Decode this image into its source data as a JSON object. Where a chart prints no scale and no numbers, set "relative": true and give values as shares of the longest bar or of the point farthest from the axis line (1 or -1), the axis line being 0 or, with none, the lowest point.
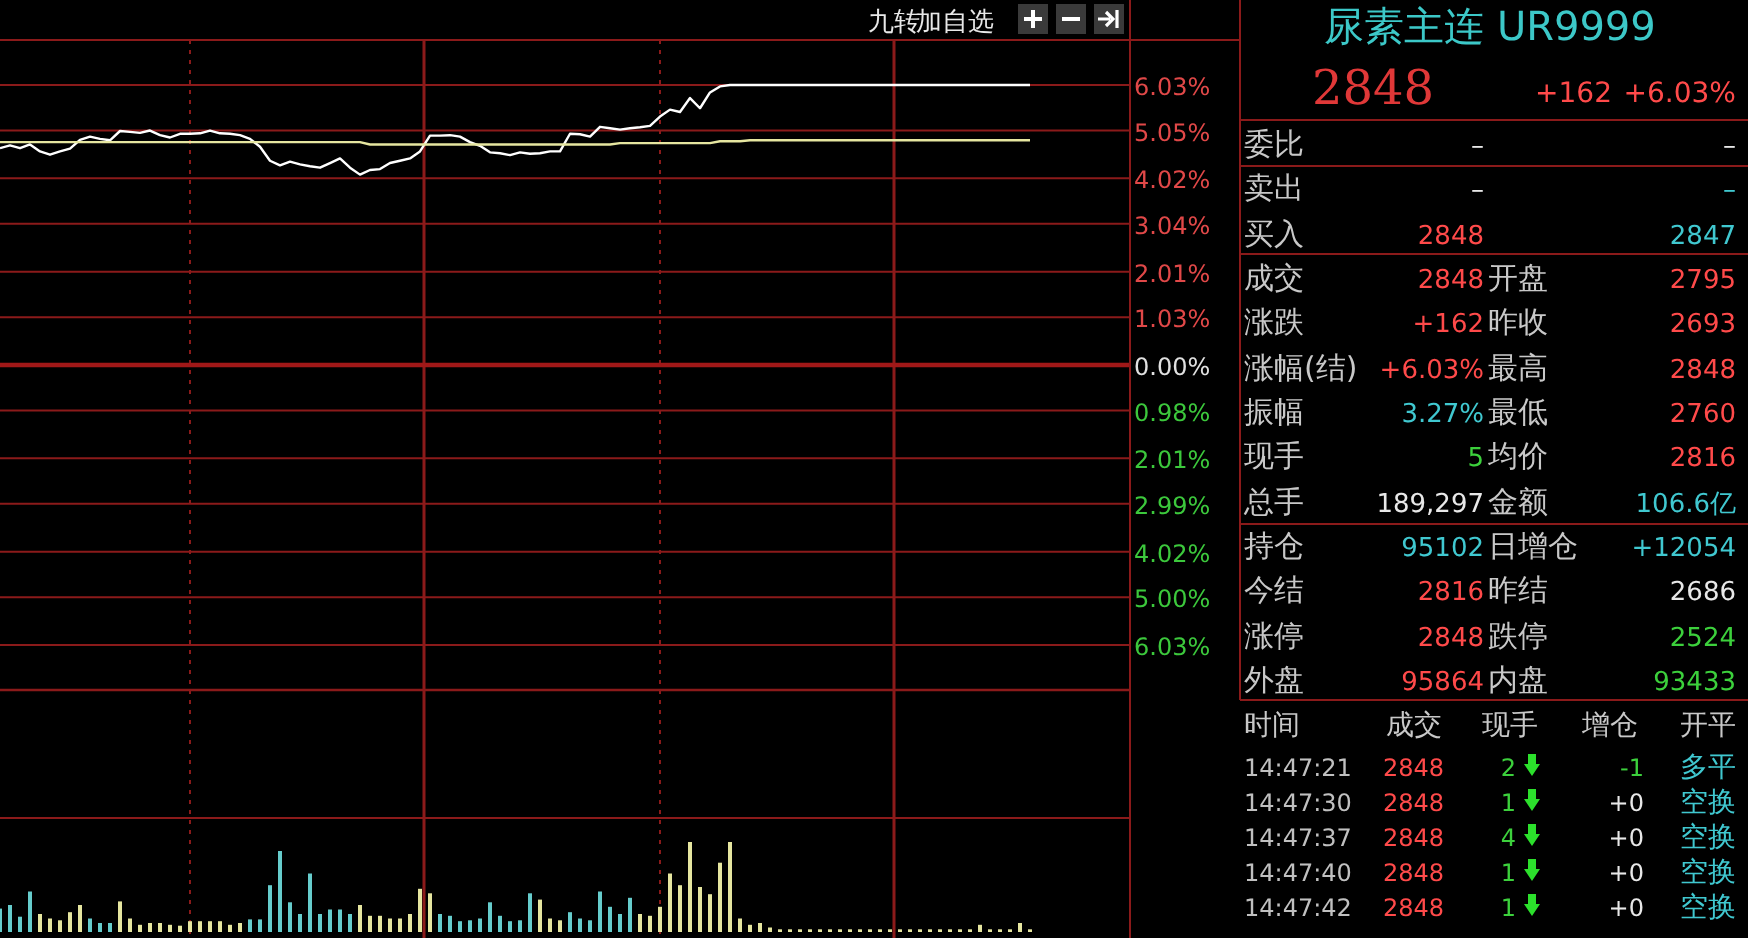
{
  "chart_data": [
    {
      "type": "line",
      "categories": [
        null,
        null,
        null,
        null,
        null,
        null,
        null,
        null,
        null,
        null,
        null,
        null,
        null,
        null,
        null,
        null,
        null,
        null,
        null,
        null,
        null,
        null,
        null,
        null,
        null,
        null,
        null,
        null,
        null,
        null,
        null,
        null,
        null,
        null,
        null,
        null,
        null,
        null,
        null,
        null,
        null,
        null,
        null,
        null,
        null,
        null,
        null,
        null,
        null,
        null,
        null,
        null,
        null,
        null,
        null,
        null,
        null,
        null,
        null,
        null,
        null,
        null,
        null,
        null,
        null,
        null,
        null,
        null,
        null,
        null,
        null,
        null,
        null,
        null,
        null,
        null,
        null,
        null,
        null,
        null,
        null,
        null,
        null,
        null,
        null,
        null,
        null,
        null,
        null,
        null,
        null,
        null,
        null,
        null,
        null,
        null,
        null,
        null,
        null,
        null,
        null,
        null,
        null,
        null,
        null,
        null,
        null,
        null,
        null,
        null,
        null,
        null,
        null
      ],
      "ylim": [
        -7.0,
        7.0
      ],
      "yticks": [
        {
          "value": 6.03,
          "label": "6.03%"
        },
        {
          "value": 5.05,
          "label": "5.05%"
        },
        {
          "value": 4.02,
          "label": "4.02%"
        },
        {
          "value": 3.04,
          "label": "3.04%"
        },
        {
          "value": 2.01,
          "label": "2.01%"
        },
        {
          "value": 1.03,
          "label": "1.03%"
        },
        {
          "value": 0,
          "label": "0.00%"
        },
        {
          "value": -0.98,
          "label": "0.98%"
        },
        {
          "value": -2.01,
          "label": "2.01%"
        },
        {
          "value": -2.99,
          "label": "2.99%"
        },
        {
          "value": -4.02,
          "label": "4.02%"
        },
        {
          "value": -5.0,
          "label": "5.00%"
        },
        {
          "value": -6.03,
          "label": "6.03%"
        }
      ],
      "grid": "y",
      "tick_labels": "y",
      "ref_lines": [
        {
          "axis": "y",
          "value": 0
        }
      ],
      "annotations": [
        "九转",
        "加自选"
      ],
      "series": [
        {
          "color": "#ffffff",
          "values": [
            4.67,
            4.73,
            4.67,
            4.75,
            4.6,
            4.53,
            4.6,
            4.66,
            4.85,
            4.92,
            4.87,
            4.84,
            5.04,
            5.02,
            5.0,
            5.05,
            4.95,
            4.9,
            4.98,
            4.98,
            4.99,
            5.05,
            4.99,
            4.98,
            4.95,
            4.87,
            4.7,
            4.4,
            4.3,
            4.38,
            4.32,
            4.28,
            4.25,
            4.35,
            4.45,
            4.25,
            4.1,
            4.2,
            4.22,
            4.35,
            4.4,
            4.45,
            4.6,
            4.94,
            4.94,
            4.95,
            4.92,
            4.8,
            4.72,
            4.58,
            4.56,
            4.52,
            4.58,
            4.55,
            4.56,
            4.6,
            4.6,
            4.98,
            4.97,
            4.92,
            5.13,
            5.1,
            5.07,
            5.1,
            5.12,
            5.15,
            5.35,
            5.5,
            5.45,
            5.75,
            5.53,
            5.87,
            6.0,
            6.03,
            6.03,
            6.03,
            6.03,
            6.03,
            6.03,
            6.03,
            6.03,
            6.03,
            6.03,
            6.03,
            6.03,
            6.03,
            6.03,
            6.03,
            6.03,
            6.03,
            6.03,
            6.03,
            6.03,
            6.03,
            6.03,
            6.03,
            6.03,
            6.03,
            6.03,
            6.03,
            6.03,
            6.03,
            6.03,
            6.03,
            null,
            null,
            null,
            null,
            null,
            null,
            null,
            null,
            null
          ]
        },
        {
          "color": "#e6e6a0",
          "values": [
            4.8,
            4.8,
            4.8,
            4.8,
            4.8,
            4.8,
            4.8,
            4.8,
            4.8,
            4.8,
            4.8,
            4.8,
            4.8,
            4.8,
            4.8,
            4.8,
            4.8,
            4.8,
            4.8,
            4.8,
            4.8,
            4.8,
            4.8,
            4.8,
            4.8,
            4.8,
            4.8,
            4.8,
            4.8,
            4.8,
            4.8,
            4.8,
            4.8,
            4.8,
            4.8,
            4.8,
            4.8,
            4.75,
            4.75,
            4.75,
            4.75,
            4.75,
            4.75,
            4.75,
            4.75,
            4.75,
            4.75,
            4.75,
            4.75,
            4.75,
            4.75,
            4.75,
            4.75,
            4.75,
            4.75,
            4.75,
            4.75,
            4.75,
            4.75,
            4.75,
            4.75,
            4.75,
            4.78,
            4.78,
            4.78,
            4.78,
            4.78,
            4.78,
            4.78,
            4.78,
            4.78,
            4.78,
            4.82,
            4.82,
            4.82,
            4.84,
            4.84,
            4.84,
            4.84,
            4.84,
            4.84,
            4.84,
            4.84,
            4.84,
            4.84,
            4.84,
            4.84,
            4.84,
            4.84,
            4.84,
            4.84,
            4.84,
            4.84,
            4.84,
            4.84,
            4.84,
            4.84,
            4.84,
            4.84,
            4.84,
            4.84,
            4.84,
            4.84,
            4.84,
            null,
            null,
            null,
            null,
            null,
            null,
            null,
            null,
            null
          ]
        }
      ]
    },
    {
      "type": "bar",
      "relative": true,
      "categories": [
        null,
        null,
        null,
        null,
        null,
        null,
        null,
        null,
        null,
        null,
        null,
        null,
        null,
        null,
        null,
        null,
        null,
        null,
        null,
        null,
        null,
        null,
        null,
        null,
        null,
        null,
        null,
        null,
        null,
        null,
        null,
        null,
        null,
        null,
        null,
        null,
        null,
        null,
        null,
        null,
        null,
        null,
        null,
        null,
        null,
        null,
        null,
        null,
        null,
        null,
        null,
        null,
        null,
        null,
        null,
        null,
        null,
        null,
        null,
        null,
        null,
        null,
        null,
        null,
        null,
        null,
        null,
        null,
        null,
        null,
        null,
        null,
        null,
        null,
        null,
        null,
        null,
        null,
        null,
        null,
        null,
        null,
        null,
        null,
        null,
        null,
        null,
        null,
        null,
        null,
        null,
        null,
        null,
        null,
        null,
        null,
        null,
        null,
        null,
        null,
        null,
        null,
        null,
        null,
        null,
        null,
        null,
        null,
        null,
        null,
        null,
        null,
        null
      ],
      "values": [
        0.26,
        0.3,
        0.17,
        0.45,
        0.2,
        0.15,
        0.13,
        0.22,
        0.3,
        0.15,
        0.1,
        0.1,
        0.34,
        0.15,
        0.08,
        0.1,
        0.1,
        0.08,
        0.07,
        0.12,
        0.12,
        0.12,
        0.12,
        0.08,
        0.1,
        0.14,
        0.14,
        0.52,
        0.9,
        0.33,
        0.2,
        0.65,
        0.2,
        0.25,
        0.25,
        0.2,
        0.3,
        0.18,
        0.18,
        0.15,
        0.15,
        0.2,
        0.48,
        0.43,
        0.2,
        0.18,
        0.12,
        0.13,
        0.15,
        0.33,
        0.18,
        0.12,
        0.13,
        0.43,
        0.36,
        0.15,
        0.13,
        0.22,
        0.15,
        0.13,
        0.45,
        0.28,
        0.2,
        0.38,
        0.2,
        0.18,
        0.28,
        0.65,
        0.52,
        1,
        0.5,
        0.42,
        0.77,
        1,
        0.15,
        0.08,
        0.1,
        0.05,
        0.03,
        0.03,
        0.03,
        0.03,
        0.03,
        0.03,
        0.03,
        0.03,
        0.03,
        0.03,
        0.03,
        0.03,
        0.03,
        0.03,
        0.03,
        0.03,
        0.03,
        0.03,
        0.03,
        0.03,
        0.08,
        0.03,
        0.03,
        0.03,
        0.1,
        0.03,
        null,
        null,
        null,
        null,
        null,
        null,
        null,
        null,
        null
      ],
      "colors": [
        "#66cccc",
        "#66cccc",
        "#66cccc",
        "#66cccc",
        "#e6e6a0",
        "#e6e6a0",
        "#e6e6a0",
        "#e6e6a0",
        "#e6e6a0",
        "#66cccc",
        "#66cccc",
        "#66cccc",
        "#e6e6a0",
        "#e6e6a0",
        "#e6e6a0",
        "#e6e6a0",
        "#e6e6a0",
        "#e6e6a0",
        "#e6e6a0",
        "#e6e6a0",
        "#e6e6a0",
        "#e6e6a0",
        "#e6e6a0",
        "#e6e6a0",
        "#e6e6a0",
        "#66cccc",
        "#66cccc",
        "#66cccc",
        "#66cccc",
        "#66cccc",
        "#66cccc",
        "#66cccc",
        "#66cccc",
        "#66cccc",
        "#66cccc",
        "#66cccc",
        "#e6e6a0",
        "#e6e6a0",
        "#e6e6a0",
        "#e6e6a0",
        "#e6e6a0",
        "#e6e6a0",
        "#e6e6a0",
        "#e6e6a0",
        "#66cccc",
        "#66cccc",
        "#66cccc",
        "#66cccc",
        "#66cccc",
        "#66cccc",
        "#66cccc",
        "#66cccc",
        "#66cccc",
        "#66cccc",
        "#e6e6a0",
        "#e6e6a0",
        "#e6e6a0",
        "#66cccc",
        "#66cccc",
        "#66cccc",
        "#66cccc",
        "#66cccc",
        "#66cccc",
        "#66cccc",
        "#e6e6a0",
        "#e6e6a0",
        "#e6e6a0",
        "#e6e6a0",
        "#e6e6a0",
        "#e6e6a0",
        "#e6e6a0",
        "#e6e6a0",
        "#e6e6a0",
        "#e6e6a0",
        "#e6e6a0",
        "#e6e6a0",
        "#e6e6a0",
        "#e6e6a0",
        "#e6e6a0",
        "#e6e6a0",
        "#e6e6a0",
        "#e6e6a0",
        "#e6e6a0",
        "#e6e6a0",
        "#e6e6a0",
        "#e6e6a0",
        "#e6e6a0",
        "#e6e6a0",
        "#e6e6a0",
        "#e6e6a0",
        "#e6e6a0",
        "#e6e6a0",
        "#e6e6a0",
        "#e6e6a0",
        "#e6e6a0",
        "#e6e6a0",
        "#e6e6a0",
        "#e6e6a0",
        "#e6e6a0",
        "#e6e6a0",
        "#e6e6a0",
        "#e6e6a0",
        "#e6e6a0",
        "#e6e6a0",
        null,
        null,
        null,
        null,
        null,
        null,
        null,
        null,
        null
      ]
    },
    {
      "type": "other",
      "title": "尿素主连 UR9999",
      "annotations": [
        "2848",
        "+162",
        "+6.03%",
        "委比",
        "–",
        "–",
        "卖出",
        "–",
        "–",
        "买入",
        "2848",
        "2847",
        "成交",
        "2848",
        "开盘",
        "2795",
        "涨跌",
        "+162",
        "昨收",
        "2693",
        "涨幅(结)",
        "+6.03%",
        "最高",
        "2848",
        "振幅",
        "3.27%",
        "最低",
        "2760",
        "现手",
        "5",
        "均价",
        "2816",
        "总手",
        "189,297",
        "金额",
        "106.6亿",
        "持仓",
        "95102",
        "日增仓",
        "+12054",
        "今结",
        "2816",
        "昨结",
        "2686",
        "涨停",
        "2848",
        "跌停",
        "2524",
        "外盘",
        "95864",
        "内盘",
        "93433",
        "时间",
        "成交",
        "现手",
        "增仓",
        "开平",
        "14:47:21",
        "2848",
        "2",
        "-1",
        "多平",
        "14:47:30",
        "2848",
        "1",
        "+0",
        "空换",
        "14:47:37",
        "2848",
        "4",
        "+0",
        "空换",
        "14:47:40",
        "2848",
        "1",
        "+0",
        "空换",
        "14:47:42",
        "2848",
        "1",
        "+0",
        "空换"
      ]
    }
  ]
}
